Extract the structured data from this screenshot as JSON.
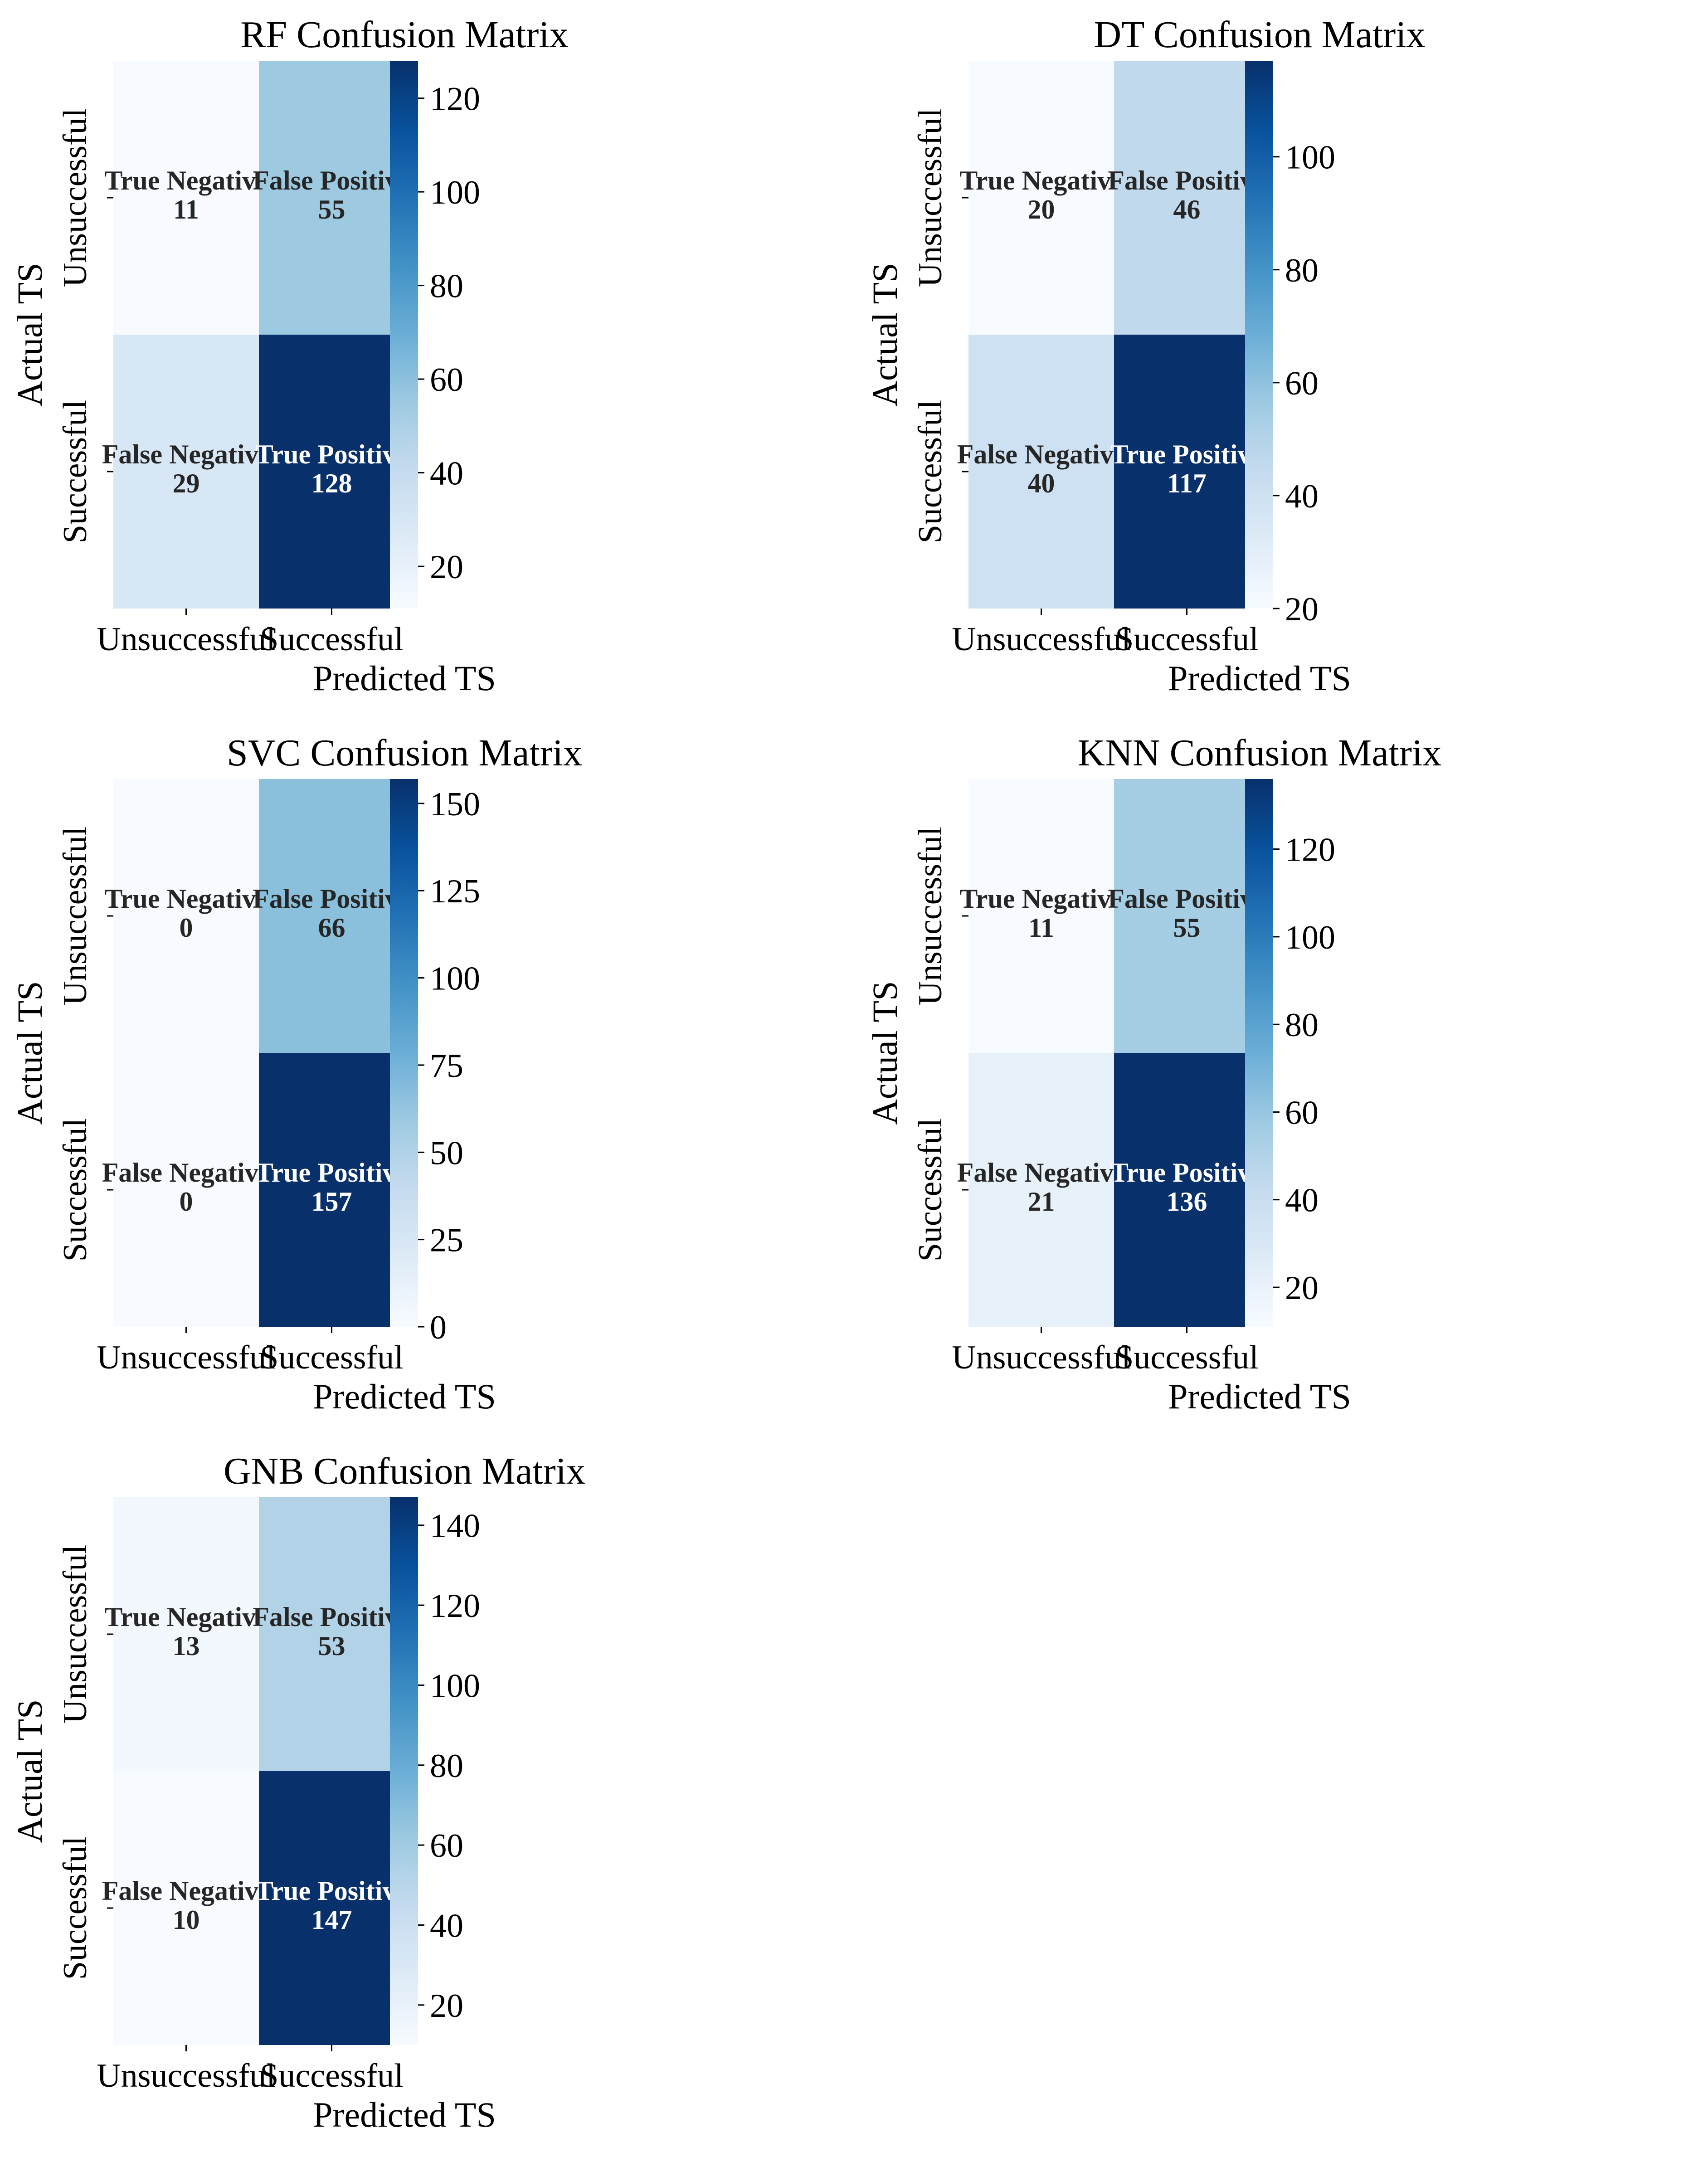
{
  "chart_data": [
    {
      "type": "heatmap",
      "title": "RF Confusion Matrix",
      "xlabel": "Predicted TS",
      "ylabel": "Actual TS",
      "x_categories": [
        "Unsuccessful",
        "Successful"
      ],
      "y_categories": [
        "Unsuccessful",
        "Successful"
      ],
      "cell_names": [
        [
          "True Negative",
          "False Positive"
        ],
        [
          "False Negative",
          "True Positive"
        ]
      ],
      "values": [
        [
          11,
          55
        ],
        [
          29,
          128
        ]
      ],
      "colorbar": {
        "range": [
          11,
          128
        ],
        "ticks": [
          20,
          40,
          60,
          80,
          100,
          120
        ]
      }
    },
    {
      "type": "heatmap",
      "title": "DT Confusion Matrix",
      "xlabel": "Predicted TS",
      "ylabel": "Actual TS",
      "x_categories": [
        "Unsuccessful",
        "Successful"
      ],
      "y_categories": [
        "Unsuccessful",
        "Successful"
      ],
      "cell_names": [
        [
          "True Negative",
          "False Positive"
        ],
        [
          "False Negative",
          "True Positive"
        ]
      ],
      "values": [
        [
          20,
          46
        ],
        [
          40,
          117
        ]
      ],
      "colorbar": {
        "range": [
          20,
          117
        ],
        "ticks": [
          20,
          40,
          60,
          80,
          100
        ]
      }
    },
    {
      "type": "heatmap",
      "title": "SVC Confusion Matrix",
      "xlabel": "Predicted TS",
      "ylabel": "Actual TS",
      "x_categories": [
        "Unsuccessful",
        "Successful"
      ],
      "y_categories": [
        "Unsuccessful",
        "Successful"
      ],
      "cell_names": [
        [
          "True Negative",
          "False Positive"
        ],
        [
          "False Negative",
          "True Positive"
        ]
      ],
      "values": [
        [
          0,
          66
        ],
        [
          0,
          157
        ]
      ],
      "colorbar": {
        "range": [
          0,
          157
        ],
        "ticks": [
          0,
          25,
          50,
          75,
          100,
          125,
          150
        ]
      }
    },
    {
      "type": "heatmap",
      "title": "KNN Confusion Matrix",
      "xlabel": "Predicted TS",
      "ylabel": "Actual TS",
      "x_categories": [
        "Unsuccessful",
        "Successful"
      ],
      "y_categories": [
        "Unsuccessful",
        "Successful"
      ],
      "cell_names": [
        [
          "True Negative",
          "False Positive"
        ],
        [
          "False Negative",
          "True Positive"
        ]
      ],
      "values": [
        [
          11,
          55
        ],
        [
          21,
          136
        ]
      ],
      "colorbar": {
        "range": [
          11,
          136
        ],
        "ticks": [
          20,
          40,
          60,
          80,
          100,
          120
        ]
      }
    },
    {
      "type": "heatmap",
      "title": "GNB Confusion Matrix",
      "xlabel": "Predicted TS",
      "ylabel": "Actual TS",
      "x_categories": [
        "Unsuccessful",
        "Successful"
      ],
      "y_categories": [
        "Unsuccessful",
        "Successful"
      ],
      "cell_names": [
        [
          "True Negative",
          "False Positive"
        ],
        [
          "False Negative",
          "True Positive"
        ]
      ],
      "values": [
        [
          13,
          53
        ],
        [
          10,
          147
        ]
      ],
      "colorbar": {
        "range": [
          10,
          147
        ],
        "ticks": [
          20,
          40,
          60,
          80,
          100,
          120,
          140
        ]
      }
    }
  ],
  "colors": {
    "cmap_low": "#f7fbff",
    "cmap_high": "#08306b",
    "text_dark": "#262626",
    "text_light": "#ffffff"
  }
}
